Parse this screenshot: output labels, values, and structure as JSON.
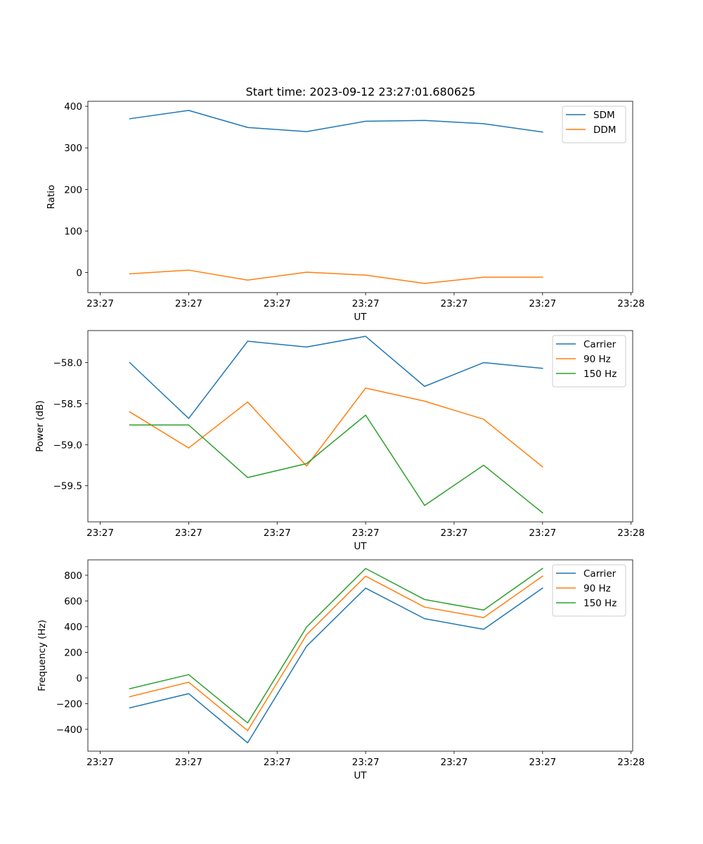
{
  "figure": {
    "title": "Start time: 2023-09-12 23:27:01.680625"
  },
  "colors": {
    "blue": "#1f77b4",
    "orange": "#ff7f0e",
    "green": "#2ca02c"
  },
  "chart_data": [
    {
      "type": "line",
      "title": "Start time: 2023-09-12 23:27:01.680625",
      "xlabel": "UT",
      "ylabel": "Ratio",
      "x": [
        1,
        2,
        3,
        4,
        5,
        6,
        7,
        8
      ],
      "xlim": [
        0.291,
        9.528
      ],
      "x_ticks": [
        0.5,
        2.0,
        3.5,
        5.0,
        6.5,
        8.0,
        9.5
      ],
      "x_tick_labels": [
        "23:27",
        "23:27",
        "23:27",
        "23:27",
        "23:27",
        "23:27",
        "23:28"
      ],
      "ylim": [
        -48,
        412
      ],
      "y_ticks": [
        0,
        100,
        200,
        300,
        400
      ],
      "y_tick_labels": [
        "0",
        "100",
        "200",
        "300",
        "400"
      ],
      "legend_position": "top-right",
      "series": [
        {
          "name": "SDM",
          "color": "#1f77b4",
          "values": [
            370,
            390,
            349,
            339,
            364,
            366,
            358,
            338
          ]
        },
        {
          "name": "DDM",
          "color": "#ff7f0e",
          "values": [
            -3,
            6,
            -18,
            1,
            -6,
            -26,
            -11,
            -11
          ]
        }
      ]
    },
    {
      "type": "line",
      "title": "",
      "xlabel": "UT",
      "ylabel": "Power (dB)",
      "x": [
        1,
        2,
        3,
        4,
        5,
        6,
        7,
        8
      ],
      "xlim": [
        0.291,
        9.528
      ],
      "x_ticks": [
        0.5,
        2.0,
        3.5,
        5.0,
        6.5,
        8.0,
        9.5
      ],
      "x_tick_labels": [
        "23:27",
        "23:27",
        "23:27",
        "23:27",
        "23:27",
        "23:27",
        "23:28"
      ],
      "ylim": [
        -59.94,
        -57.61
      ],
      "y_ticks": [
        -59.5,
        -59.0,
        -58.5,
        -58.0
      ],
      "y_tick_labels": [
        "−59.5",
        "−59.0",
        "−58.5",
        "−58.0"
      ],
      "legend_position": "top-right",
      "series": [
        {
          "name": "Carrier",
          "color": "#1f77b4",
          "values": [
            -58.0,
            -58.68,
            -57.74,
            -57.81,
            -57.68,
            -58.29,
            -58.0,
            -58.07
          ]
        },
        {
          "name": "90 Hz",
          "color": "#ff7f0e",
          "values": [
            -58.6,
            -59.04,
            -58.48,
            -59.26,
            -58.31,
            -58.47,
            -58.69,
            -59.27
          ]
        },
        {
          "name": "150 Hz",
          "color": "#2ca02c",
          "values": [
            -58.76,
            -58.76,
            -59.4,
            -59.23,
            -58.64,
            -59.74,
            -59.25,
            -59.83
          ]
        }
      ]
    },
    {
      "type": "line",
      "title": "",
      "xlabel": "UT",
      "ylabel": "Frequency (Hz)",
      "x": [
        1,
        2,
        3,
        4,
        5,
        6,
        7,
        8
      ],
      "xlim": [
        0.291,
        9.528
      ],
      "x_ticks": [
        0.5,
        2.0,
        3.5,
        5.0,
        6.5,
        8.0,
        9.5
      ],
      "x_tick_labels": [
        "23:27",
        "23:27",
        "23:27",
        "23:27",
        "23:27",
        "23:27",
        "23:28"
      ],
      "ylim": [
        -570,
        920
      ],
      "y_ticks": [
        -400,
        -200,
        0,
        200,
        400,
        600,
        800
      ],
      "y_tick_labels": [
        "−400",
        "−200",
        "0",
        "200",
        "400",
        "600",
        "800"
      ],
      "legend_position": "top-right",
      "series": [
        {
          "name": "Carrier",
          "color": "#1f77b4",
          "values": [
            -233,
            -122,
            -505,
            248,
            700,
            462,
            379,
            700
          ]
        },
        {
          "name": "90 Hz",
          "color": "#ff7f0e",
          "values": [
            -146,
            -33,
            -410,
            337,
            793,
            552,
            470,
            793
          ]
        },
        {
          "name": "150 Hz",
          "color": "#2ca02c",
          "values": [
            -84,
            26,
            -350,
            397,
            853,
            611,
            529,
            853
          ]
        }
      ]
    }
  ]
}
